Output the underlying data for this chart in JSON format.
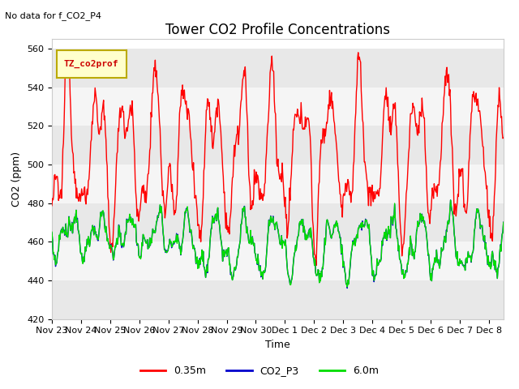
{
  "title": "Tower CO2 Profile Concentrations",
  "no_data_text": "No data for f_CO2_P4",
  "legend_box_text": "TZ_co2prof",
  "xlabel": "Time",
  "ylabel": "CO2 (ppm)",
  "ylim": [
    420,
    565
  ],
  "yticks": [
    420,
    440,
    460,
    480,
    500,
    520,
    540,
    560
  ],
  "xtick_labels": [
    "Nov 23",
    "Nov 24",
    "Nov 25",
    "Nov 26",
    "Nov 27",
    "Nov 28",
    "Nov 29",
    "Nov 30",
    "Dec 1",
    "Dec 2",
    "Dec 3",
    "Dec 4",
    "Dec 5",
    "Dec 6",
    "Dec 7",
    "Dec 8"
  ],
  "bg_color": "#ffffff",
  "plot_bg_color": "#ffffff",
  "band_color_light": "#e8e8e8",
  "band_color_white": "#f5f5f5",
  "red_color": "#ff0000",
  "green_color": "#00dd00",
  "blue_color": "#0000cc",
  "line_width": 1.0,
  "title_fontsize": 12,
  "label_fontsize": 9,
  "tick_fontsize": 8
}
